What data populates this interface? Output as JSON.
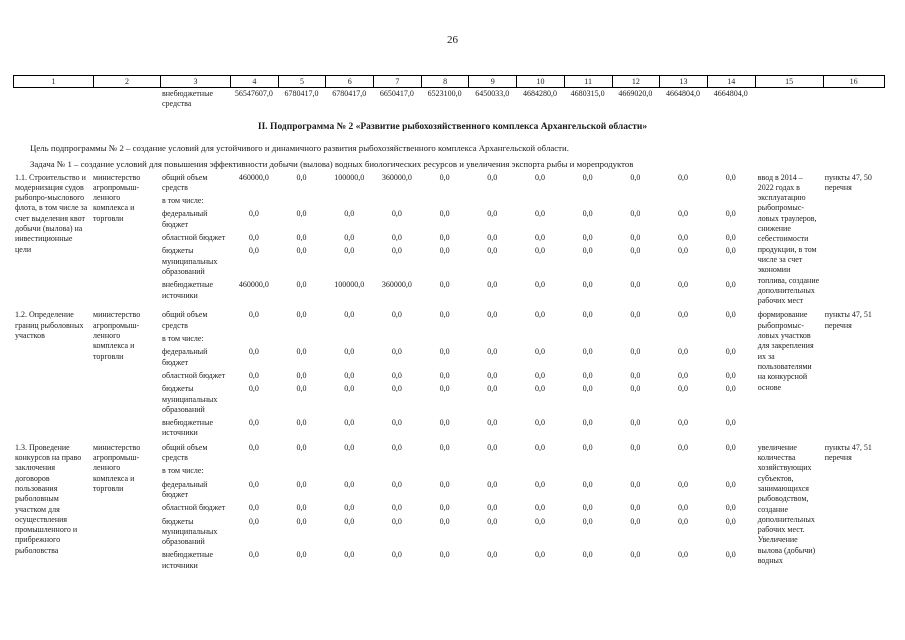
{
  "page": {
    "number": "26"
  },
  "top_table": {
    "column_numbers": [
      "1",
      "2",
      "3",
      "4",
      "5",
      "6",
      "7",
      "8",
      "9",
      "10",
      "11",
      "12",
      "13",
      "14",
      "15",
      "16"
    ],
    "carryover_row": {
      "label": "внебюджетные средства",
      "values": [
        "56547607,0",
        "6780417,0",
        "6780417,0",
        "6650417,0",
        "6523100,0",
        "6450033,0",
        "4684280,0",
        "4680315,0",
        "4669020,0",
        "4664804,0",
        "4664804,0"
      ]
    }
  },
  "section": {
    "title": "II. Подпрограмма № 2 «Развитие рыбохозяйственного комплекса Архангельской области»",
    "goal": "Цель подпрограммы № 2 – создание условий для устойчивого и динамичного развития рыбохозяйственного комплекса Архангельской области.",
    "task": "Задача № 1 – создание условий для повышения эффективности добычи (вылова) водных биологических ресурсов и увеличения экспорта рыбы и морепродуктов"
  },
  "main_table": {
    "rows": [
      {
        "activity": "1.1. Строительство и модернизация судов рыбопро-мыслового флота, в том числе за счет выделения квот добычи (вылова) на инвестиционные цели",
        "executor": "министерство агропромыш-ленного комплекса и торговли",
        "budget_lines": [
          {
            "label": "общий объем средств",
            "values": [
              "460000,0",
              "0,0",
              "100000,0",
              "360000,0",
              "0,0",
              "0,0",
              "0,0",
              "0,0",
              "0,0",
              "0,0",
              "0,0"
            ]
          },
          {
            "label": "в том числе:",
            "values": []
          },
          {
            "label": "федеральный бюджет",
            "values": [
              "0,0",
              "0,0",
              "0,0",
              "0,0",
              "0,0",
              "0,0",
              "0,0",
              "0,0",
              "0,0",
              "0,0",
              "0,0"
            ]
          },
          {
            "label": "областной бюджет",
            "values": [
              "0,0",
              "0,0",
              "0,0",
              "0,0",
              "0,0",
              "0,0",
              "0,0",
              "0,0",
              "0,0",
              "0,0",
              "0,0"
            ]
          },
          {
            "label": "бюджеты муниципальных образований",
            "values": [
              "0,0",
              "0,0",
              "0,0",
              "0,0",
              "0,0",
              "0,0",
              "0,0",
              "0,0",
              "0,0",
              "0,0",
              "0,0"
            ]
          },
          {
            "label": "внебюджетные источники",
            "values": [
              "460000,0",
              "0,0",
              "100000,0",
              "360000,0",
              "0,0",
              "0,0",
              "0,0",
              "0,0",
              "0,0",
              "0,0",
              "0,0"
            ]
          }
        ],
        "result": "ввод в 2014 – 2022 годах в эксплуатацию рыбопромыс-ловых траулеров, снижение себестоимости продукции, в том числе за счет экономии топлива, создание дополнительных рабочих мест",
        "reference": "пункты 47, 50 перечня"
      },
      {
        "activity": "1.2. Определение границ рыболовных участков",
        "executor": "министерство агропромыш-ленного комплекса и торговли",
        "budget_lines": [
          {
            "label": "общий объем средств",
            "values": [
              "0,0",
              "0,0",
              "0,0",
              "0,0",
              "0,0",
              "0,0",
              "0,0",
              "0,0",
              "0,0",
              "0,0",
              "0,0"
            ]
          },
          {
            "label": "в том числе:",
            "values": []
          },
          {
            "label": "федеральный бюджет",
            "values": [
              "0,0",
              "0,0",
              "0,0",
              "0,0",
              "0,0",
              "0,0",
              "0,0",
              "0,0",
              "0,0",
              "0,0",
              "0,0"
            ]
          },
          {
            "label": "областной бюджет",
            "values": [
              "0,0",
              "0,0",
              "0,0",
              "0,0",
              "0,0",
              "0,0",
              "0,0",
              "0,0",
              "0,0",
              "0,0",
              "0,0"
            ]
          },
          {
            "label": "бюджеты муниципальных образований",
            "values": [
              "0,0",
              "0,0",
              "0,0",
              "0,0",
              "0,0",
              "0,0",
              "0,0",
              "0,0",
              "0,0",
              "0,0",
              "0,0"
            ]
          },
          {
            "label": "внебюджетные источники",
            "values": [
              "0,0",
              "0,0",
              "0,0",
              "0,0",
              "0,0",
              "0,0",
              "0,0",
              "0,0",
              "0,0",
              "0,0",
              "0,0"
            ]
          }
        ],
        "result": "формирование рыбопромыс-ловых участков для закрепления их за пользователями на конкурсной основе",
        "reference": "пункты 47, 51 перечня"
      },
      {
        "activity": "1.3. Проведение конкурсов на право заключения договоров пользования рыболовным участком для осуществления промышленного и прибрежного рыболовства",
        "executor": "министерство агропромыш-ленного комплекса и торговли",
        "budget_lines": [
          {
            "label": "общий объем средств",
            "values": [
              "0,0",
              "0,0",
              "0,0",
              "0,0",
              "0,0",
              "0,0",
              "0,0",
              "0,0",
              "0,0",
              "0,0",
              "0,0"
            ]
          },
          {
            "label": "в том числе:",
            "values": []
          },
          {
            "label": "федеральный бюджет",
            "values": [
              "0,0",
              "0,0",
              "0,0",
              "0,0",
              "0,0",
              "0,0",
              "0,0",
              "0,0",
              "0,0",
              "0,0",
              "0,0"
            ]
          },
          {
            "label": "областной бюджет",
            "values": [
              "0,0",
              "0,0",
              "0,0",
              "0,0",
              "0,0",
              "0,0",
              "0,0",
              "0,0",
              "0,0",
              "0,0",
              "0,0"
            ]
          },
          {
            "label": "бюджеты муниципальных образований",
            "values": [
              "0,0",
              "0,0",
              "0,0",
              "0,0",
              "0,0",
              "0,0",
              "0,0",
              "0,0",
              "0,0",
              "0,0",
              "0,0"
            ]
          },
          {
            "label": "внебюджетные источники",
            "values": [
              "0,0",
              "0,0",
              "0,0",
              "0,0",
              "0,0",
              "0,0",
              "0,0",
              "0,0",
              "0,0",
              "0,0",
              "0,0"
            ]
          }
        ],
        "result": "увеличение количества хозяйствующих субъектов, занимающихся рыбоводством, создание дополнительных рабочих мест. Увеличение вылова (добычи) водных",
        "reference": "пункты 47, 51 перечня"
      }
    ]
  }
}
